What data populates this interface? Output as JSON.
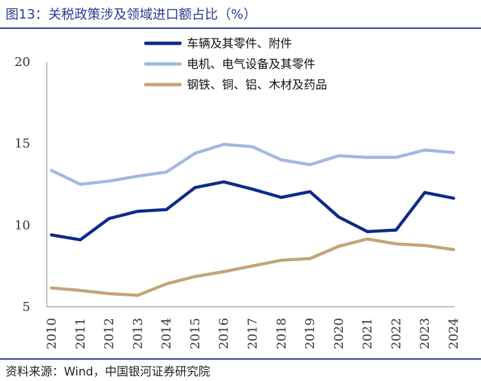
{
  "title": "图13：关税政策涉及领域进口额占比（%）",
  "source": {
    "label": "资料来源：Wind，",
    "org": "中国银河证券研究院"
  },
  "colors": {
    "accent": "#2a3a93",
    "series": [
      "#0d2a8a",
      "#a3b8e0",
      "#c4a479"
    ],
    "axis": "#9a9a9a"
  },
  "chart_data": {
    "type": "line",
    "title": "关税政策涉及领域进口额占比（%）",
    "xlabel": "",
    "ylabel": "",
    "x": [
      "2010",
      "2011",
      "2012",
      "2013",
      "2014",
      "2015",
      "2016",
      "2017",
      "2018",
      "2019",
      "2020",
      "2021",
      "2022",
      "2023",
      "2024"
    ],
    "ylim": [
      5,
      20
    ],
    "yticks": [
      "5",
      "10",
      "15",
      "20"
    ],
    "grid": false,
    "legend_position": "top-right",
    "series": [
      {
        "name": "车辆及其零件、附件",
        "values": [
          9.4,
          9.1,
          10.4,
          10.85,
          10.95,
          12.3,
          12.65,
          12.2,
          11.7,
          12.05,
          10.5,
          9.6,
          9.7,
          12.0,
          11.65
        ]
      },
      {
        "name": "电机、电气设备及其零件",
        "values": [
          13.35,
          12.5,
          12.7,
          13.0,
          13.25,
          14.4,
          14.95,
          14.8,
          14.0,
          13.7,
          14.25,
          14.15,
          14.15,
          14.6,
          14.45
        ]
      },
      {
        "name": "钢铁、铜、铝、木材及药品",
        "values": [
          6.15,
          6.0,
          5.8,
          5.7,
          6.4,
          6.85,
          7.15,
          7.5,
          7.85,
          7.95,
          8.7,
          9.15,
          8.85,
          8.75,
          8.5
        ]
      }
    ]
  }
}
